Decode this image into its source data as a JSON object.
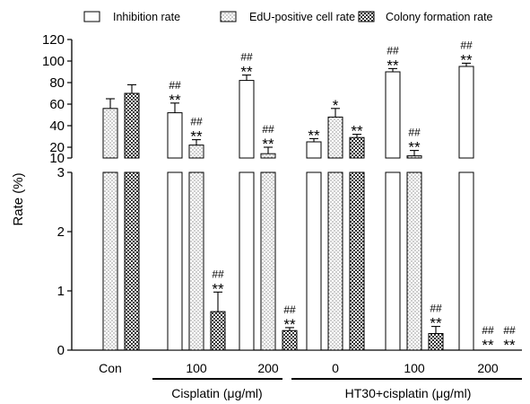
{
  "chart_data": {
    "type": "bar",
    "ylabel": "Rate (%)",
    "y_axis": {
      "broken": true,
      "lower_range": [
        0,
        3
      ],
      "upper_range": [
        10,
        120
      ],
      "lower_ticks": [
        0,
        1,
        2,
        3
      ],
      "upper_ticks": [
        10,
        20,
        40,
        60,
        80,
        100,
        120
      ]
    },
    "legend": {
      "position": "top",
      "entries": [
        "Inhibition rate",
        "EdU-positive cell rate",
        "Colony formation rate"
      ]
    },
    "groups": [
      {
        "label": "Con",
        "parent": ""
      },
      {
        "label": "100",
        "parent": "Cisplatin (μg/ml)"
      },
      {
        "label": "200",
        "parent": "Cisplatin (μg/ml)"
      },
      {
        "label": "0",
        "parent": "HT30+cisplatin (μg/ml)"
      },
      {
        "label": "100",
        "parent": "HT30+cisplatin (μg/ml)"
      },
      {
        "label": "200",
        "parent": "HT30+cisplatin (μg/ml)"
      }
    ],
    "group_labels": [
      "Cisplatin (μg/ml)",
      "HT30+cisplatin (μg/ml)"
    ],
    "series": [
      {
        "name": "Inhibition rate",
        "pattern": "open",
        "values": [
          null,
          52,
          82,
          25,
          90,
          95
        ],
        "errors": [
          null,
          9,
          5,
          3,
          3,
          3
        ],
        "marks": [
          "",
          "##\n**",
          "##\n**",
          "**",
          "##\n**",
          "##\n**"
        ]
      },
      {
        "name": "EdU-positive cell rate",
        "pattern": "dots",
        "values": [
          56,
          22,
          14,
          48,
          12,
          null
        ],
        "errors": [
          9,
          5,
          6,
          8,
          5,
          null
        ],
        "marks": [
          "",
          "##\n**",
          "##\n**",
          "*",
          "##\n**",
          "##\n**"
        ]
      },
      {
        "name": "Colony formation rate",
        "pattern": "crosshatch",
        "values": [
          70,
          0.65,
          0.33,
          29,
          0.28,
          0
        ],
        "errors": [
          8,
          0.33,
          0.05,
          3,
          0.12,
          null
        ],
        "marks": [
          "",
          "##\n**",
          "##\n**",
          "**",
          "##\n**",
          "##\n**"
        ]
      }
    ]
  }
}
